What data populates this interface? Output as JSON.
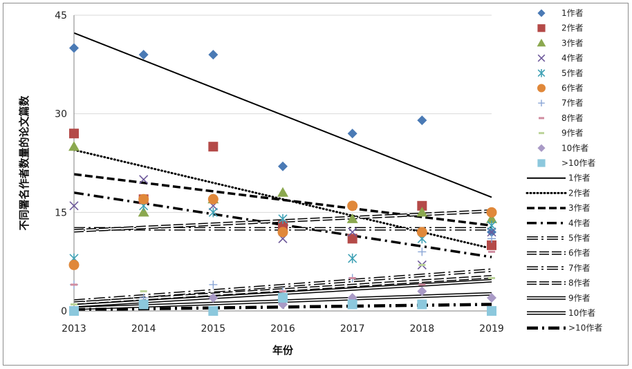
{
  "chart_data": {
    "type": "scatter",
    "xlabel": "年份",
    "ylabel": "不同署名作者数量的论文篇数",
    "x": [
      2013,
      2014,
      2015,
      2016,
      2017,
      2018,
      2019
    ],
    "x_ticks": [
      "2013",
      "2014",
      "2015",
      "2016",
      "2017",
      "2018",
      "2019"
    ],
    "y_ticks": [
      "0",
      "15",
      "30",
      "45"
    ],
    "ylim": [
      0,
      45
    ],
    "legend_position": "right",
    "series": [
      {
        "name": "1作者",
        "marker": "diamond",
        "color": "#4a7ab5",
        "values": [
          40,
          39,
          39,
          22,
          27,
          29,
          12
        ]
      },
      {
        "name": "2作者",
        "marker": "square",
        "color": "#b44a48",
        "values": [
          27,
          17,
          25,
          13,
          11,
          16,
          10
        ]
      },
      {
        "name": "3作者",
        "marker": "triangle",
        "color": "#8ba84f",
        "values": [
          25,
          15,
          17,
          18,
          14,
          15,
          14
        ]
      },
      {
        "name": "4作者",
        "marker": "x",
        "color": "#6e5a9b",
        "values": [
          16,
          20,
          16,
          11,
          12,
          7,
          12
        ]
      },
      {
        "name": "5作者",
        "marker": "asterisk",
        "color": "#3fa1b5",
        "values": [
          8,
          16,
          15,
          14,
          8,
          11,
          13
        ]
      },
      {
        "name": "6作者",
        "marker": "circle",
        "color": "#e0883a",
        "values": [
          7,
          17,
          17,
          12,
          16,
          12,
          15
        ]
      },
      {
        "name": "7作者",
        "marker": "plus",
        "color": "#8aa6d6",
        "values": [
          4,
          2,
          4,
          3,
          5,
          9,
          11
        ]
      },
      {
        "name": "8作者",
        "marker": "dash",
        "color": "#d08ca0",
        "values": [
          4,
          1,
          2,
          3,
          5,
          4,
          9
        ]
      },
      {
        "name": "9作者",
        "marker": "dash",
        "color": "#bcd49a",
        "values": [
          1,
          3,
          2,
          1,
          2,
          7,
          5
        ]
      },
      {
        "name": "10作者",
        "marker": "diamond",
        "color": "#a99ac6",
        "values": [
          0,
          1,
          2,
          1,
          2,
          3,
          2
        ]
      },
      {
        "name": ">10作者",
        "marker": "square",
        "color": "#8cc8dd",
        "values": [
          0,
          1,
          0,
          2,
          1,
          1,
          0
        ]
      }
    ],
    "trendlines": [
      {
        "name": "1作者",
        "style": "solid",
        "start": 42.3,
        "end": 17.3
      },
      {
        "name": "2作者",
        "style": "dotted",
        "start": 24.5,
        "end": 9.5
      },
      {
        "name": "3作者",
        "style": "dashed",
        "start": 20.8,
        "end": 13
      },
      {
        "name": "4作者",
        "style": "dashdot",
        "start": 18,
        "end": 8.2
      },
      {
        "name": "5作者",
        "style": "double-dashdot",
        "start": 12.5,
        "end": 12.5
      },
      {
        "name": "6作者",
        "style": "double-dash",
        "start": 12.2,
        "end": 15.2
      },
      {
        "name": "7作者",
        "style": "double-dashdot",
        "start": 1.5,
        "end": 6.2
      },
      {
        "name": "8作者",
        "style": "double-dash",
        "start": 1.2,
        "end": 5.2
      },
      {
        "name": "9作者",
        "style": "double-solid",
        "start": 0.8,
        "end": 4.6
      },
      {
        "name": "10作者",
        "style": "double-solid",
        "start": 0.4,
        "end": 2.6
      },
      {
        "name": ">10作者",
        "style": "heavy-dashdot",
        "start": 0.2,
        "end": 1
      }
    ]
  }
}
